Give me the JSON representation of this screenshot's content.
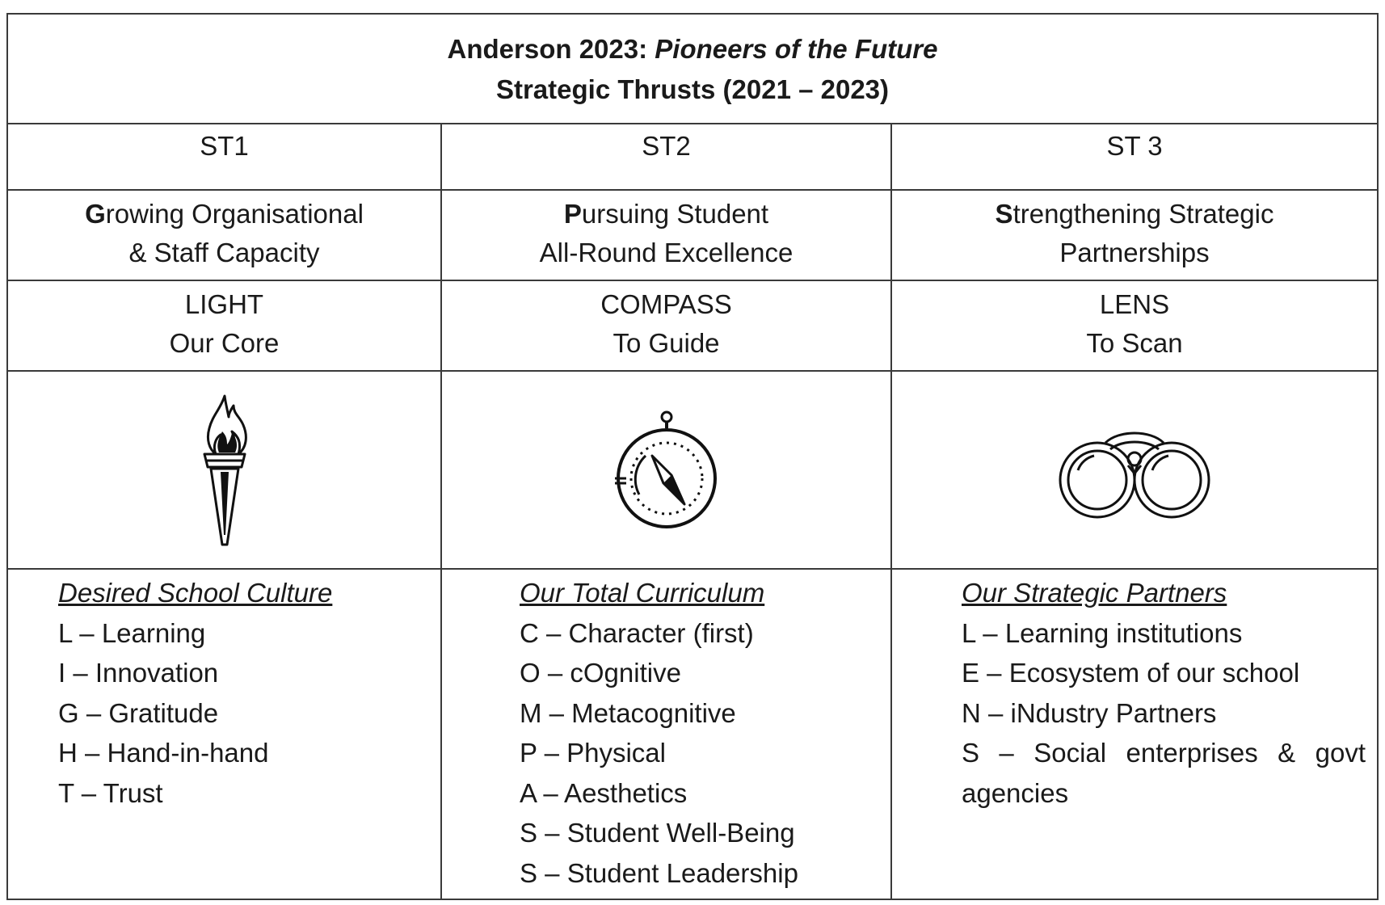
{
  "title": {
    "line1_plain": "Anderson 2023: ",
    "line1_italic": "Pioneers of the Future",
    "line2": "Strategic Thrusts (2021 – 2023)"
  },
  "columns": [
    {
      "code": "ST1",
      "thrust_initial": "G",
      "thrust_rest_line1": "rowing Organisational",
      "thrust_line2": "& Staff Capacity",
      "symbol": "LIGHT",
      "symbol_caption": "Our Core",
      "icon": "torch-icon",
      "list_heading": "Desired School Culture",
      "items": [
        "L – Learning",
        "I – Innovation",
        "G – Gratitude",
        "H – Hand-in-hand",
        "T – Trust"
      ]
    },
    {
      "code": "ST2",
      "thrust_initial": "P",
      "thrust_rest_line1": "ursuing Student",
      "thrust_line2": "All-Round Excellence",
      "symbol": "COMPASS",
      "symbol_caption": "To Guide",
      "icon": "compass-icon",
      "list_heading": "Our Total Curriculum",
      "items": [
        "C – Character (first)",
        "O – cOgnitive",
        "M – Metacognitive",
        "P – Physical",
        "A – Aesthetics",
        "S – Student Well-Being",
        "S – Student Leadership"
      ]
    },
    {
      "code": "ST 3",
      "thrust_initial": "S",
      "thrust_rest_line1": "trengthening Strategic",
      "thrust_line2": "Partnerships",
      "symbol": "LENS",
      "symbol_caption": "To Scan",
      "icon": "binoculars-icon",
      "list_heading": "Our Strategic Partners",
      "items": [
        "L – Learning institutions",
        "E – Ecosystem of our school",
        "N – iNdustry Partners",
        "S – Social enterprises & govt agencies"
      ]
    }
  ]
}
